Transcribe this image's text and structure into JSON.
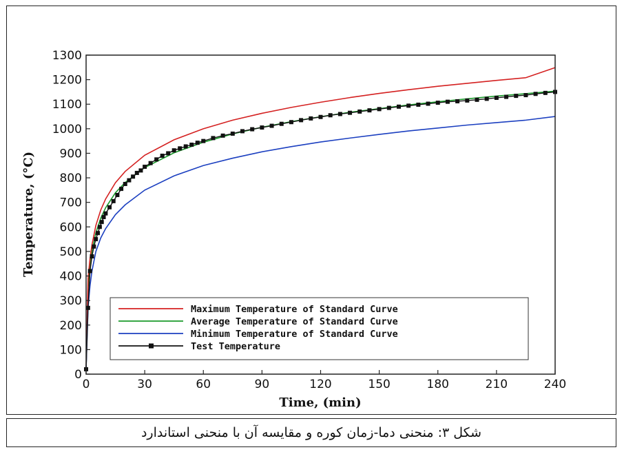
{
  "caption": "شکل ۳: منحنی دما-زمان کوره و مقایسه آن با منحنی استاندارد",
  "chart_data": {
    "type": "line",
    "title": "",
    "xlabel": "Time, (min)",
    "ylabel": "Temperature, (°C)",
    "xlim": [
      0,
      240
    ],
    "ylim": [
      0,
      1300
    ],
    "xticks": [
      0,
      30,
      60,
      90,
      120,
      150,
      180,
      210,
      240
    ],
    "yticks": [
      0,
      100,
      200,
      300,
      400,
      500,
      600,
      700,
      800,
      900,
      1000,
      1100,
      1200,
      1300
    ],
    "grid": false,
    "legend_position": "bottom-left",
    "series": [
      {
        "name": "Maximum Temperature of Standard Curve",
        "color": "#d42020",
        "marker": "none",
        "x": [
          0,
          1,
          2,
          3,
          5,
          7.5,
          10,
          15,
          20,
          30,
          45,
          60,
          75,
          90,
          105,
          120,
          135,
          150,
          165,
          180,
          195,
          210,
          225,
          240
        ],
        "y": [
          20,
          390,
          470,
          527,
          606,
          669,
          714,
          780,
          826,
          892,
          955,
          1000,
          1035,
          1063,
          1087,
          1108,
          1127,
          1144,
          1159,
          1173,
          1185,
          1197,
          1208,
          1249
        ]
      },
      {
        "name": "Average Temperature of Standard Curve",
        "color": "#1a9a2a",
        "marker": "none",
        "x": [
          0,
          1,
          2,
          3,
          5,
          7.5,
          10,
          15,
          20,
          30,
          45,
          60,
          75,
          90,
          105,
          120,
          135,
          150,
          165,
          180,
          195,
          210,
          225,
          240
        ],
        "y": [
          20,
          349,
          445,
          502,
          576,
          636,
          678,
          739,
          781,
          842,
          902,
          945,
          979,
          1006,
          1029,
          1049,
          1067,
          1082,
          1097,
          1110,
          1122,
          1133,
          1143,
          1153
        ]
      },
      {
        "name": "Minimum Temperature of Standard Curve",
        "color": "#1b3fc0",
        "marker": "none",
        "x": [
          0,
          1,
          2,
          3,
          5,
          7.5,
          10,
          15,
          20,
          30,
          45,
          60,
          75,
          90,
          105,
          120,
          135,
          150,
          165,
          180,
          195,
          210,
          225,
          240
        ],
        "y": [
          20,
          270,
          360,
          420,
          500,
          555,
          593,
          650,
          690,
          750,
          808,
          850,
          880,
          906,
          927,
          946,
          962,
          977,
          991,
          1003,
          1015,
          1025,
          1035,
          1050
        ]
      },
      {
        "name": "Test Temperature",
        "color": "#111111",
        "marker": "square",
        "x": [
          0,
          1,
          2,
          3,
          4,
          5,
          6,
          7,
          8,
          9,
          10,
          12,
          14,
          16,
          18,
          20,
          22,
          24,
          26,
          28,
          30,
          33,
          36,
          39,
          42,
          45,
          48,
          51,
          54,
          57,
          60,
          65,
          70,
          75,
          80,
          85,
          90,
          95,
          100,
          105,
          110,
          115,
          120,
          125,
          130,
          135,
          140,
          145,
          150,
          155,
          160,
          165,
          170,
          175,
          180,
          185,
          190,
          195,
          200,
          205,
          210,
          215,
          220,
          225,
          230,
          235,
          240
        ],
        "y": [
          20,
          270,
          420,
          480,
          520,
          550,
          575,
          600,
          620,
          640,
          655,
          680,
          705,
          730,
          755,
          775,
          790,
          805,
          820,
          830,
          845,
          860,
          875,
          890,
          900,
          912,
          920,
          928,
          935,
          943,
          950,
          962,
          972,
          980,
          990,
          998,
          1005,
          1012,
          1020,
          1027,
          1035,
          1042,
          1048,
          1055,
          1060,
          1065,
          1070,
          1075,
          1080,
          1085,
          1090,
          1094,
          1098,
          1102,
          1106,
          1110,
          1112,
          1115,
          1118,
          1122,
          1126,
          1130,
          1134,
          1137,
          1142,
          1146,
          1150
        ]
      }
    ]
  }
}
